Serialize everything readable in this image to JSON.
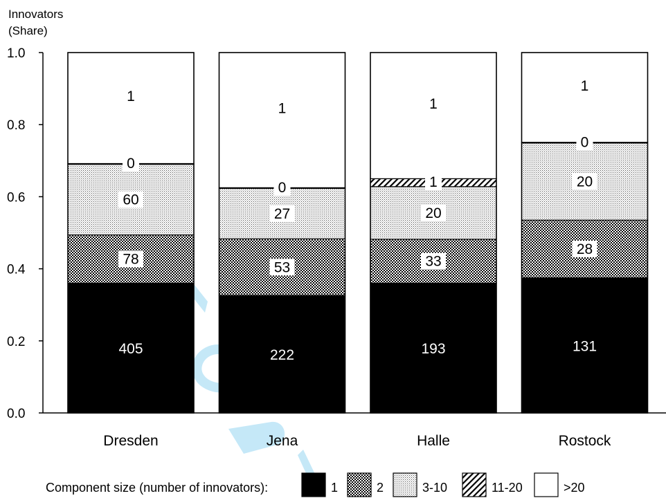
{
  "chart_data": {
    "type": "bar",
    "stacked": true,
    "normalized": true,
    "ylabel_lines": [
      "Innovators",
      "(Share)"
    ],
    "ylim": [
      0,
      1.0
    ],
    "yticks": [
      "0.0",
      "0.2",
      "0.4",
      "0.6",
      "0.8",
      "1.0"
    ],
    "ytick_values": [
      0,
      0.2,
      0.4,
      0.6,
      0.8,
      1.0
    ],
    "grid": false,
    "categories": [
      "Dresden",
      "Jena",
      "Halle",
      "Rostock"
    ],
    "series": [
      {
        "name": "1",
        "pattern": "solid-black",
        "values": [
          405,
          222,
          193,
          131
        ],
        "shares": [
          0.36,
          0.326,
          0.36,
          0.375
        ],
        "labels": [
          "405",
          "222",
          "193",
          "131"
        ]
      },
      {
        "name": "2",
        "pattern": "checker",
        "values": [
          78,
          53,
          33,
          28
        ],
        "shares": [
          0.134,
          0.157,
          0.122,
          0.16
        ],
        "labels": [
          "78",
          "53",
          "33",
          "28"
        ]
      },
      {
        "name": "3-10",
        "pattern": "dots",
        "values": [
          60,
          27,
          20,
          20
        ],
        "shares": [
          0.196,
          0.14,
          0.146,
          0.214
        ],
        "labels": [
          "60",
          "27",
          "20",
          "20"
        ]
      },
      {
        "name": "11-20",
        "pattern": "hatch",
        "values": [
          0,
          0,
          1,
          0
        ],
        "shares": [
          0.002,
          0.002,
          0.022,
          0.002
        ],
        "labels": [
          "0",
          "0",
          "1",
          "0"
        ]
      },
      {
        "name": ">20",
        "pattern": "white",
        "values": [
          1,
          1,
          1,
          1
        ],
        "shares": [
          0.308,
          0.375,
          0.35,
          0.249
        ],
        "labels": [
          "1",
          "1",
          "1",
          "1"
        ]
      }
    ],
    "legend": {
      "title": "Component size (number of innovators):",
      "placement": "bottom",
      "entries": [
        "1",
        "2",
        "3-10",
        "11-20",
        ">20"
      ]
    }
  },
  "watermark": {
    "color": "#bfe6f7"
  },
  "colors": {
    "ink": "#000000",
    "paper": "#ffffff"
  }
}
